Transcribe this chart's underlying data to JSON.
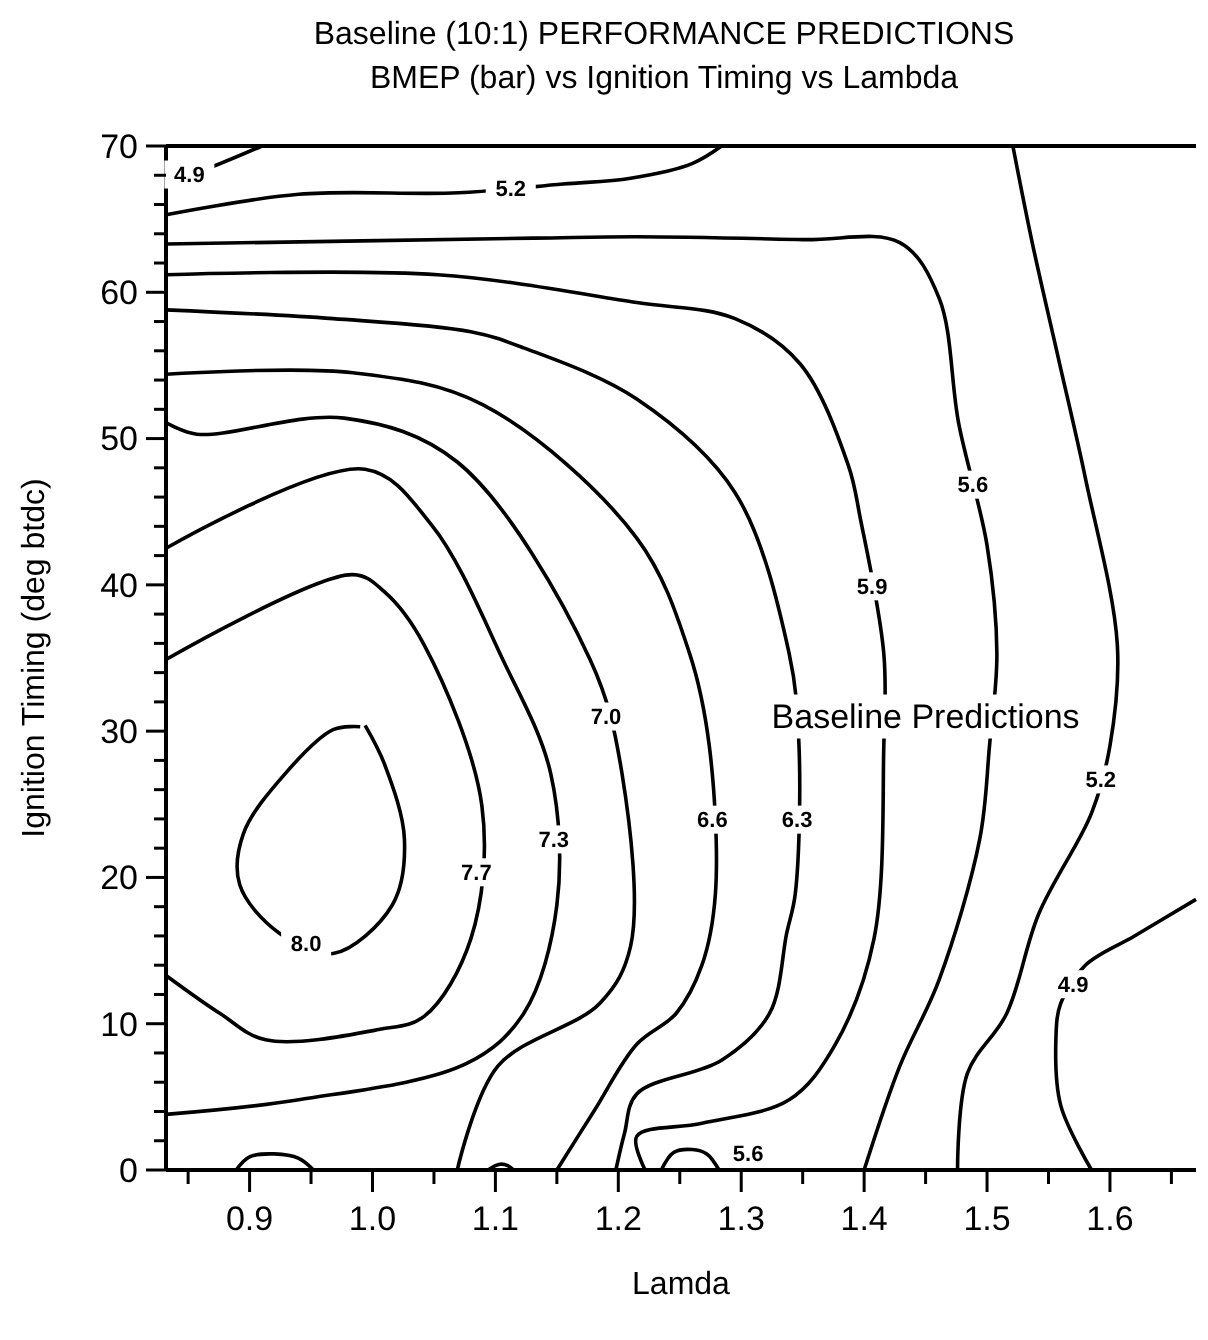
{
  "chart_data": {
    "type": "line",
    "title": "Baseline (10:1) PERFORMANCE PREDICTIONS",
    "subtitle": "BMEP (bar) vs Ignition Timing vs Lambda",
    "xlabel": "Lamda",
    "ylabel": "Ignition Timing (deg btdc)",
    "annotations": [
      "Baseline Predictions"
    ],
    "xlim": [
      0.832,
      1.67
    ],
    "ylim": [
      0,
      70
    ],
    "xticks": [
      {
        "value": 0.85,
        "label": null
      },
      0.9,
      {
        "value": 0.95,
        "label": null
      },
      {
        "value": 1,
        "label": "1.0"
      },
      {
        "value": 1.05,
        "label": null
      },
      1.1,
      {
        "value": 1.15,
        "label": null
      },
      1.2,
      {
        "value": 1.25,
        "label": null
      },
      1.3,
      {
        "value": 1.35,
        "label": null
      },
      1.4,
      {
        "value": 1.45,
        "label": null
      },
      1.5,
      {
        "value": 1.55,
        "label": null
      },
      1.6,
      {
        "value": 1.65,
        "label": null
      }
    ],
    "yticks": [
      0,
      {
        "value": 2,
        "label": null
      },
      {
        "value": 4,
        "label": null
      },
      {
        "value": 6,
        "label": null
      },
      {
        "value": 8,
        "label": null
      },
      10,
      {
        "value": 12,
        "label": null
      },
      {
        "value": 14,
        "label": null
      },
      {
        "value": 16,
        "label": null
      },
      {
        "value": 18,
        "label": null
      },
      20,
      {
        "value": 22,
        "label": null
      },
      {
        "value": 24,
        "label": null
      },
      {
        "value": 26,
        "label": null
      },
      {
        "value": 28,
        "label": null
      },
      30,
      {
        "value": 32,
        "label": null
      },
      {
        "value": 34,
        "label": null
      },
      {
        "value": 36,
        "label": null
      },
      {
        "value": 38,
        "label": null
      },
      40,
      {
        "value": 42,
        "label": null
      },
      {
        "value": 44,
        "label": null
      },
      {
        "value": 46,
        "label": null
      },
      {
        "value": 48,
        "label": null
      },
      50,
      {
        "value": 52,
        "label": null
      },
      {
        "value": 54,
        "label": null
      },
      {
        "value": 56,
        "label": null
      },
      {
        "value": 58,
        "label": null
      },
      60,
      {
        "value": 62,
        "label": null
      },
      {
        "value": 64,
        "label": null
      },
      {
        "value": 66,
        "label": null
      },
      {
        "value": 68,
        "label": null
      },
      70
    ],
    "grid": false,
    "legend": false,
    "marker": "none",
    "line_style": "solid",
    "series": [
      {
        "name": "4.9",
        "color": "#000000",
        "x": [
          0.832,
          0.87,
          0.91
        ],
        "values": [
          67.5,
          68.6,
          70
        ]
      },
      {
        "name": "4.9",
        "color": "#000000",
        "x": [
          1.67,
          1.62,
          1.58,
          1.56,
          1.556,
          1.56,
          1.585
        ],
        "values": [
          18.5,
          16,
          14,
          11.4,
          8.9,
          4.4,
          0
        ]
      },
      {
        "name": "5.2",
        "color": "#000000",
        "x": [
          0.832,
          0.94,
          1.07,
          1.155,
          1.21,
          1.26,
          1.284
        ],
        "values": [
          65.3,
          66.7,
          66.8,
          67.4,
          67.8,
          68.8,
          70
        ]
      },
      {
        "name": "5.2",
        "color": "#000000",
        "x": [
          1.521,
          1.537,
          1.558,
          1.58,
          1.606,
          1.6,
          1.585,
          1.542,
          1.516,
          1.484,
          1.476
        ],
        "values": [
          70,
          63.3,
          55.5,
          47.3,
          35.9,
          29,
          24.4,
          17.5,
          10.7,
          6.6,
          0
        ]
      },
      {
        "name": "5.6",
        "color": "#000000",
        "x": [
          0.832,
          1.131,
          1.215,
          1.35,
          1.429,
          1.461,
          1.477,
          1.5,
          1.508,
          1.502,
          1.494,
          1.461,
          1.429,
          1.4
        ],
        "values": [
          63.3,
          63.7,
          63.8,
          63.6,
          63.4,
          59.6,
          51,
          42.7,
          35.3,
          29,
          22.6,
          13,
          7.1,
          0
        ]
      },
      {
        "name": "5.6",
        "color": "#000000",
        "x": [
          1.235,
          1.245,
          1.26,
          1.272,
          1.282
        ],
        "values": [
          0,
          1.2,
          1.4,
          1.1,
          0
        ]
      },
      {
        "name": "5.9",
        "color": "#000000",
        "x": [
          0.832,
          1.053,
          1.215,
          1.295,
          1.348,
          1.387,
          1.397,
          1.416,
          1.416,
          1.408,
          1.376,
          1.339,
          1.268,
          1.215,
          1.222
        ],
        "values": [
          61.2,
          61.2,
          59.3,
          58.2,
          55.1,
          48.2,
          44.5,
          35.3,
          29,
          15.8,
          8.5,
          4.8,
          3.2,
          2.3,
          0
        ]
      },
      {
        "name": "6.3",
        "color": "#000000",
        "x": [
          0.832,
          0.968,
          1.08,
          1.123,
          1.215,
          1.295,
          1.339,
          1.347,
          1.344,
          1.337,
          1.323,
          1.284,
          1.215,
          1.205,
          1.198
        ],
        "values": [
          58.8,
          58.2,
          57.3,
          56.2,
          52.7,
          46.3,
          35.3,
          29,
          18.9,
          16.2,
          10.7,
          7.5,
          5.2,
          2.5,
          0
        ]
      },
      {
        "name": "6.6",
        "color": "#000000",
        "x": [
          0.832,
          0.984,
          1.09,
          1.215,
          1.258,
          1.274,
          1.279,
          1.268,
          1.247,
          1.215,
          1.18,
          1.15
        ],
        "values": [
          54.4,
          54.5,
          52.3,
          43.2,
          35.3,
          29,
          18.9,
          14,
          10.7,
          8.6,
          4,
          0
        ]
      },
      {
        "name": "7.0",
        "color": "#000000",
        "x": [
          0.832,
          0.857,
          0.977,
          1.069,
          1.177,
          1.203,
          1.21,
          1.185,
          1.102,
          1.069
        ],
        "values": [
          51.1,
          50.3,
          51.4,
          48.4,
          34.9,
          27.1,
          15.3,
          11.4,
          7.1,
          0
        ]
      },
      {
        "name": "7.3",
        "color": "#000000",
        "x": [
          0.832,
          0.994,
          1.048,
          1.106,
          1.145,
          1.15,
          1.123,
          1.077,
          0.94,
          0.832
        ],
        "values": [
          42.5,
          47.9,
          44.1,
          34.9,
          27.1,
          18.1,
          10.7,
          7.3,
          4.8,
          3.8
        ]
      },
      {
        "name": "7.7",
        "color": "#000000",
        "x": [
          0.832,
          0.984,
          1.01,
          1.042,
          1.089,
          1.08,
          1.042,
          1.005,
          0.913,
          0.876,
          0.832
        ],
        "values": [
          34.9,
          40.7,
          39.5,
          35.9,
          24.9,
          15.8,
          10.5,
          9.6,
          8.9,
          10.7,
          13.3
        ]
      },
      {
        "name": "8.0",
        "color": "#000000",
        "x": [
          0.994,
          1.01,
          1.026,
          1.016,
          0.968,
          0.924,
          0.892,
          0.895,
          0.929,
          0.968,
          0.99
        ],
        "values": [
          30.4,
          27.7,
          22.6,
          18.1,
          14.8,
          16.2,
          19.5,
          23,
          27.1,
          30.1,
          30.3
        ]
      },
      {
        "color": "#000000",
        "x": [
          0.889,
          0.9,
          0.92,
          0.94,
          0.952
        ],
        "values": [
          0,
          0.9,
          1.1,
          0.8,
          0
        ]
      },
      {
        "color": "#000000",
        "x": [
          1.094,
          1.1,
          1.105,
          1.11,
          1.115
        ],
        "values": [
          0,
          0.3,
          0.4,
          0.3,
          0
        ]
      }
    ]
  }
}
